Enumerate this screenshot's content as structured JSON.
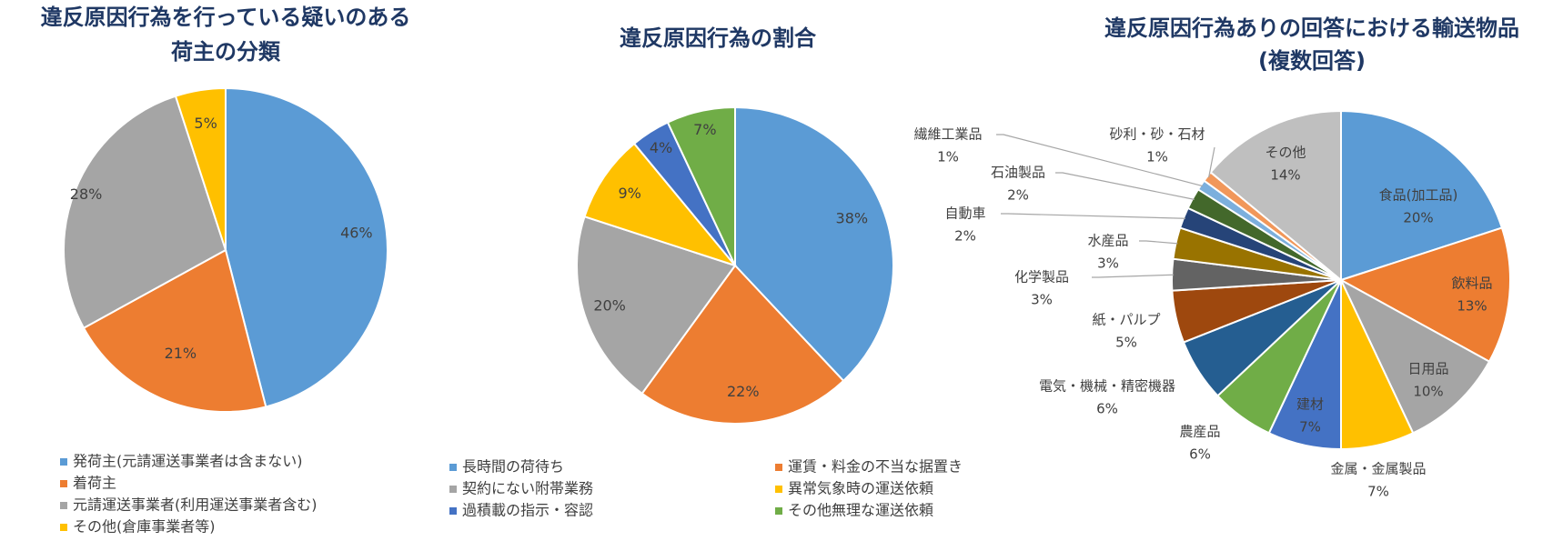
{
  "chart_data": [
    {
      "type": "pie",
      "title": [
        "違反原因行為を行っている疑いのある",
        "荷主の分類"
      ],
      "categories": [
        "発荷主(元請運送事業者は含まない)",
        "着荷主",
        "元請運送事業者(利用運送事業者含む)",
        "その他(倉庫事業者等)"
      ],
      "values": [
        46,
        21,
        28,
        5
      ],
      "labels": [
        "46%",
        "21%",
        "28%",
        "5%"
      ],
      "colors": [
        "#5b9bd5",
        "#ed7d31",
        "#a5a5a5",
        "#ffc000"
      ],
      "legend": "bottom"
    },
    {
      "type": "pie",
      "title": [
        "違反原因行為の割合"
      ],
      "categories": [
        "長時間の荷待ち",
        "運賃・料金の不当な据置き",
        "契約にない附帯業務",
        "異常気象時の運送依頼",
        "過積載の指示・容認",
        "その他無理な運送依頼"
      ],
      "values": [
        38,
        22,
        20,
        9,
        4,
        7
      ],
      "labels": [
        "38%",
        "22%",
        "20%",
        "9%",
        "4%",
        "7%"
      ],
      "colors": [
        "#5b9bd5",
        "#ed7d31",
        "#a5a5a5",
        "#ffc000",
        "#4472c4",
        "#70ad47"
      ],
      "legend": "bottom"
    },
    {
      "type": "pie",
      "title": [
        "違反原因行為ありの回答における輸送物品",
        "(複数回答)"
      ],
      "categories": [
        "食品(加工品)",
        "飲料品",
        "日用品",
        "金属・金属製品",
        "建材",
        "農産品",
        "電気・機械・精密機器",
        "紙・パルプ",
        "化学製品",
        "水産品",
        "自動車",
        "石油製品",
        "繊維工業品",
        "砂利・砂・石材",
        "その他"
      ],
      "values": [
        20,
        13,
        10,
        7,
        7,
        6,
        6,
        5,
        3,
        3,
        2,
        2,
        1,
        1,
        14
      ],
      "labels": [
        "20%",
        "13%",
        "10%",
        "7%",
        "7%",
        "6%",
        "6%",
        "5%",
        "3%",
        "3%",
        "2%",
        "2%",
        "1%",
        "1%",
        "14%"
      ],
      "colors": [
        "#5b9bd5",
        "#ed7d31",
        "#a5a5a5",
        "#ffc000",
        "#4472c4",
        "#70ad47",
        "#255e91",
        "#9e480e",
        "#636363",
        "#997300",
        "#264478",
        "#43682b",
        "#7cafdd",
        "#f1975a",
        "#bfbfbf"
      ],
      "legend": "none"
    }
  ]
}
